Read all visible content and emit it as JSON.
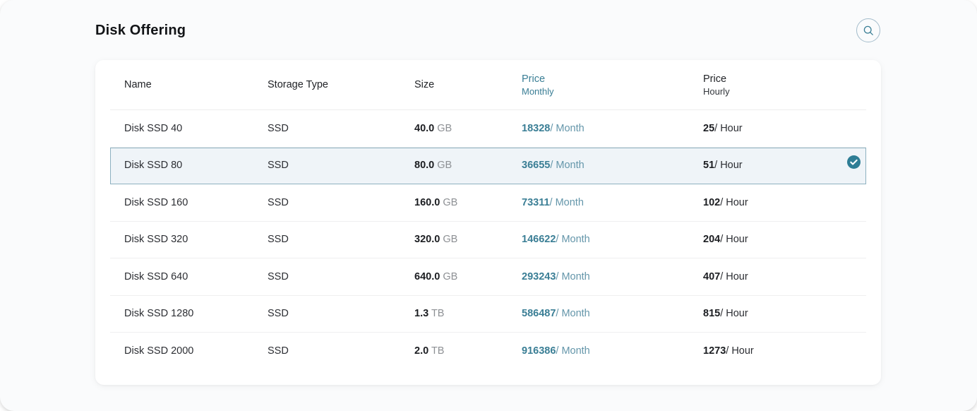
{
  "page": {
    "title": "Disk Offering"
  },
  "colors": {
    "accent_teal": "#3a7e95",
    "accent_teal_light": "#6496aa",
    "selected_row_bg": "#eff4f8",
    "selected_row_border": "#8db1c0",
    "check_badge_fill": "#2e7d95",
    "card_bg": "#ffffff",
    "page_bg": "#fafbfc",
    "divider": "#efeff0"
  },
  "icons": {
    "search": "search-icon",
    "selected_check": "check-circle-icon"
  },
  "table": {
    "columns": [
      {
        "label": "Name",
        "sublabel": "",
        "accent": false
      },
      {
        "label": "Storage Type",
        "sublabel": "",
        "accent": false
      },
      {
        "label": "Size",
        "sublabel": "",
        "accent": false
      },
      {
        "label": "Price",
        "sublabel": "Monthly",
        "accent": true
      },
      {
        "label": "Price",
        "sublabel": "Hourly",
        "accent": false
      }
    ],
    "rows": [
      {
        "name": "Disk SSD 40",
        "storage_type": "SSD",
        "size_value": "40.0",
        "size_unit": "GB",
        "price_monthly": "18328",
        "monthly_suffix": "/ Month",
        "price_hourly": "25",
        "hourly_suffix": "/ Hour",
        "selected": false
      },
      {
        "name": "Disk SSD 80",
        "storage_type": "SSD",
        "size_value": "80.0",
        "size_unit": "GB",
        "price_monthly": "36655",
        "monthly_suffix": "/ Month",
        "price_hourly": "51",
        "hourly_suffix": "/ Hour",
        "selected": true
      },
      {
        "name": "Disk SSD 160",
        "storage_type": "SSD",
        "size_value": "160.0",
        "size_unit": "GB",
        "price_monthly": "73311",
        "monthly_suffix": "/ Month",
        "price_hourly": "102",
        "hourly_suffix": "/ Hour",
        "selected": false
      },
      {
        "name": "Disk SSD 320",
        "storage_type": "SSD",
        "size_value": "320.0",
        "size_unit": "GB",
        "price_monthly": "146622",
        "monthly_suffix": "/ Month",
        "price_hourly": "204",
        "hourly_suffix": "/ Hour",
        "selected": false
      },
      {
        "name": "Disk SSD 640",
        "storage_type": "SSD",
        "size_value": "640.0",
        "size_unit": "GB",
        "price_monthly": "293243",
        "monthly_suffix": "/ Month",
        "price_hourly": "407",
        "hourly_suffix": "/ Hour",
        "selected": false
      },
      {
        "name": "Disk SSD 1280",
        "storage_type": "SSD",
        "size_value": "1.3",
        "size_unit": "TB",
        "price_monthly": "586487",
        "monthly_suffix": "/ Month",
        "price_hourly": "815",
        "hourly_suffix": "/ Hour",
        "selected": false
      },
      {
        "name": "Disk SSD 2000",
        "storage_type": "SSD",
        "size_value": "2.0",
        "size_unit": "TB",
        "price_monthly": "916386",
        "monthly_suffix": "/ Month",
        "price_hourly": "1273",
        "hourly_suffix": "/ Hour",
        "selected": false
      }
    ]
  }
}
